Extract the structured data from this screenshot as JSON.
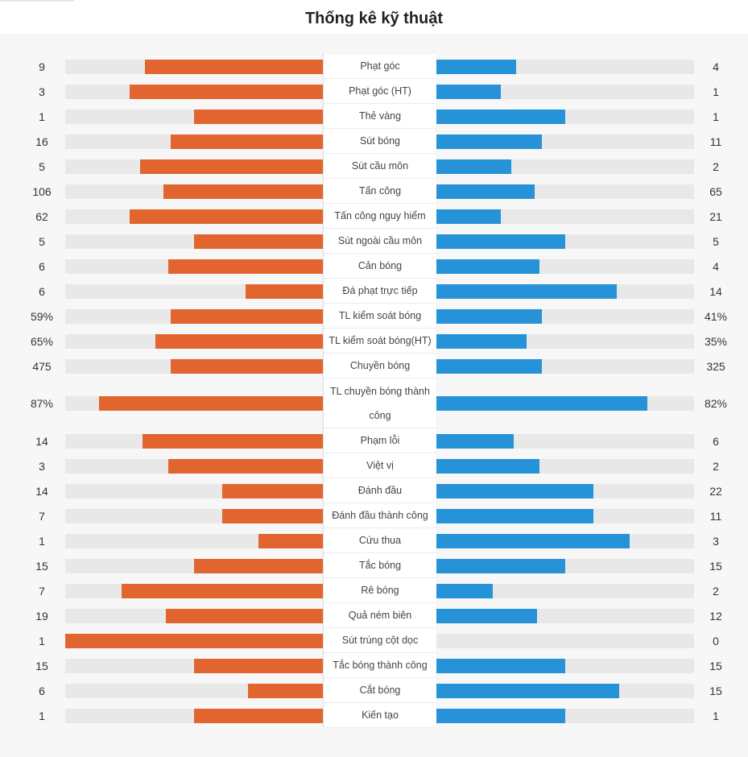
{
  "page": {
    "title": "Thống kê kỹ thuật"
  },
  "colors": {
    "home": "#e2652f",
    "away": "#2693d8",
    "track": "#e8e8e8"
  },
  "chart_data": {
    "type": "bar",
    "orientation": "diverging-horizontal",
    "rows": [
      {
        "label": "Phạt góc",
        "home": "9",
        "away": "4",
        "home_frac": 0.69,
        "away_frac": 0.31
      },
      {
        "label": "Phạt góc (HT)",
        "home": "3",
        "away": "1",
        "home_frac": 0.75,
        "away_frac": 0.25
      },
      {
        "label": "Thẻ vàng",
        "home": "1",
        "away": "1",
        "home_frac": 0.5,
        "away_frac": 0.5
      },
      {
        "label": "Sút bóng",
        "home": "16",
        "away": "11",
        "home_frac": 0.59,
        "away_frac": 0.41
      },
      {
        "label": "Sút cầu môn",
        "home": "5",
        "away": "2",
        "home_frac": 0.71,
        "away_frac": 0.29
      },
      {
        "label": "Tấn công",
        "home": "106",
        "away": "65",
        "home_frac": 0.62,
        "away_frac": 0.38
      },
      {
        "label": "Tấn công nguy hiểm",
        "home": "62",
        "away": "21",
        "home_frac": 0.75,
        "away_frac": 0.25
      },
      {
        "label": "Sút ngoài cầu môn",
        "home": "5",
        "away": "5",
        "home_frac": 0.5,
        "away_frac": 0.5
      },
      {
        "label": "Cản bóng",
        "home": "6",
        "away": "4",
        "home_frac": 0.6,
        "away_frac": 0.4
      },
      {
        "label": "Đá phạt trực tiếp",
        "home": "6",
        "away": "14",
        "home_frac": 0.3,
        "away_frac": 0.7
      },
      {
        "label": "TL kiểm soát bóng",
        "home": "59%",
        "away": "41%",
        "home_frac": 0.59,
        "away_frac": 0.41
      },
      {
        "label": "TL kiểm soát bóng(HT)",
        "home": "65%",
        "away": "35%",
        "home_frac": 0.65,
        "away_frac": 0.35
      },
      {
        "label": "Chuyền bóng",
        "home": "475",
        "away": "325",
        "home_frac": 0.59,
        "away_frac": 0.41
      },
      {
        "label": "TL chuyền bóng thành công",
        "home": "87%",
        "away": "82%",
        "home_frac": 0.87,
        "away_frac": 0.82,
        "tall": true
      },
      {
        "label": "Phạm lỗi",
        "home": "14",
        "away": "6",
        "home_frac": 0.7,
        "away_frac": 0.3
      },
      {
        "label": "Việt vị",
        "home": "3",
        "away": "2",
        "home_frac": 0.6,
        "away_frac": 0.4
      },
      {
        "label": "Đánh đầu",
        "home": "14",
        "away": "22",
        "home_frac": 0.39,
        "away_frac": 0.61
      },
      {
        "label": "Đánh đầu thành công",
        "home": "7",
        "away": "11",
        "home_frac": 0.39,
        "away_frac": 0.61
      },
      {
        "label": "Cứu thua",
        "home": "1",
        "away": "3",
        "home_frac": 0.25,
        "away_frac": 0.75
      },
      {
        "label": "Tắc bóng",
        "home": "15",
        "away": "15",
        "home_frac": 0.5,
        "away_frac": 0.5
      },
      {
        "label": "Rê bóng",
        "home": "7",
        "away": "2",
        "home_frac": 0.78,
        "away_frac": 0.22
      },
      {
        "label": "Quả ném biên",
        "home": "19",
        "away": "12",
        "home_frac": 0.61,
        "away_frac": 0.39
      },
      {
        "label": "Sút trúng cột dọc",
        "home": "1",
        "away": "0",
        "home_frac": 1.0,
        "away_frac": 0.0
      },
      {
        "label": "Tắc bóng thành công",
        "home": "15",
        "away": "15",
        "home_frac": 0.5,
        "away_frac": 0.5
      },
      {
        "label": "Cắt bóng",
        "home": "6",
        "away": "15",
        "home_frac": 0.29,
        "away_frac": 0.71
      },
      {
        "label": "Kiến tạo",
        "home": "1",
        "away": "1",
        "home_frac": 0.5,
        "away_frac": 0.5
      }
    ]
  }
}
